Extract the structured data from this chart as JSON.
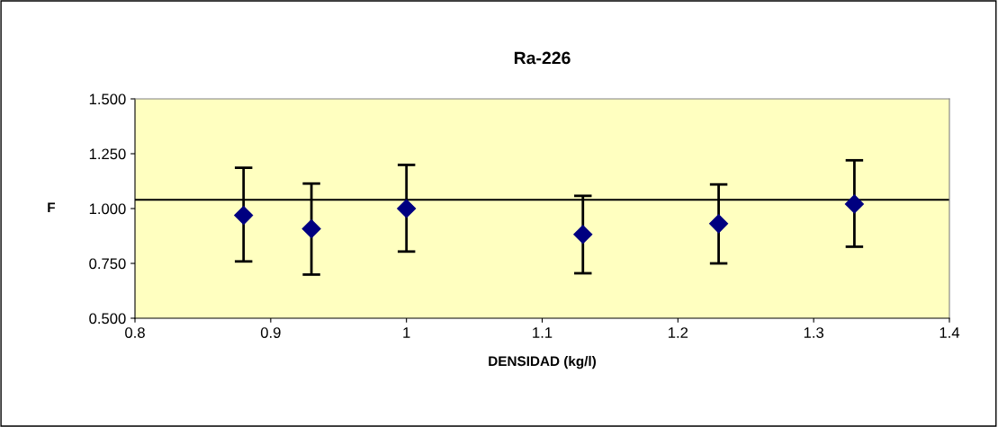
{
  "chart_data": {
    "type": "scatter",
    "title": "Ra-226",
    "xlabel": "DENSIDAD (kg/l)",
    "ylabel": "F",
    "x": [
      0.88,
      0.93,
      1.0,
      1.13,
      1.23,
      1.33
    ],
    "series": [
      {
        "color": "#000080",
        "values": [
          0.969,
          0.908,
          1.0,
          0.882,
          0.931,
          1.021
        ],
        "errors": [
          [
            0.759,
            1.186
          ],
          [
            0.699,
            1.114
          ],
          [
            0.804,
            1.199
          ],
          [
            0.705,
            1.058
          ],
          [
            0.75,
            1.11
          ],
          [
            0.826,
            1.22
          ]
        ]
      }
    ],
    "xlim": [
      0.8,
      1.4
    ],
    "xticks": [
      0.8,
      0.9,
      1,
      1.1,
      1.2,
      1.3,
      1.4
    ],
    "ylim": [
      0.5,
      1.5
    ],
    "yticks": [
      {
        "value": 0.5,
        "label": "0.500"
      },
      {
        "value": 0.75,
        "label": "0.750"
      },
      {
        "value": 1.0,
        "label": "1.000"
      },
      {
        "value": 1.25,
        "label": "1.250"
      },
      {
        "value": 1.5,
        "label": "1.500"
      }
    ],
    "ref_lines": [
      {
        "axis": "y",
        "value": 1.04,
        "color": "#000000"
      }
    ],
    "marker": "diamond",
    "grid": false,
    "legend": false
  }
}
